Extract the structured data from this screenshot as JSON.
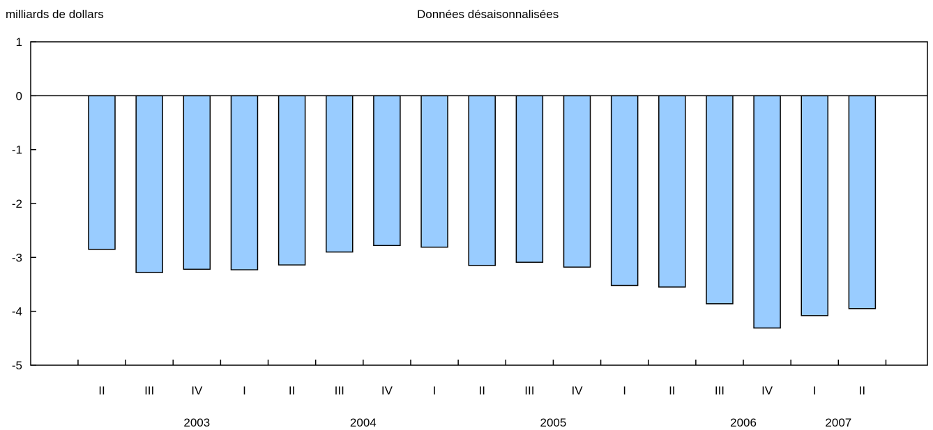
{
  "chart_data": {
    "type": "bar",
    "ylabel": "milliards de dollars",
    "subtitle": "Données désaisonnalisées",
    "ylim": [
      -5,
      1
    ],
    "yticks": [
      "1",
      "0",
      "-1",
      "-2",
      "-3",
      "-4",
      "-5"
    ],
    "categories": [
      "II",
      "III",
      "IV",
      "I",
      "II",
      "III",
      "IV",
      "I",
      "II",
      "III",
      "IV",
      "I",
      "II",
      "III",
      "IV",
      "I",
      "II"
    ],
    "values": [
      -2.85,
      -3.28,
      -3.22,
      -3.23,
      -3.14,
      -2.9,
      -2.78,
      -2.81,
      -3.15,
      -3.09,
      -3.18,
      -3.52,
      -3.55,
      -3.86,
      -4.31,
      -4.08,
      -3.95
    ],
    "years": [
      {
        "label": "2003",
        "center_index": 2
      },
      {
        "label": "2004",
        "center_index": 5.5
      },
      {
        "label": "2005",
        "center_index": 9.5
      },
      {
        "label": "2006",
        "center_index": 13.5
      },
      {
        "label": "2007",
        "center_index": 15.5
      }
    ],
    "bar_color": "#99ccff",
    "grid": false
  }
}
